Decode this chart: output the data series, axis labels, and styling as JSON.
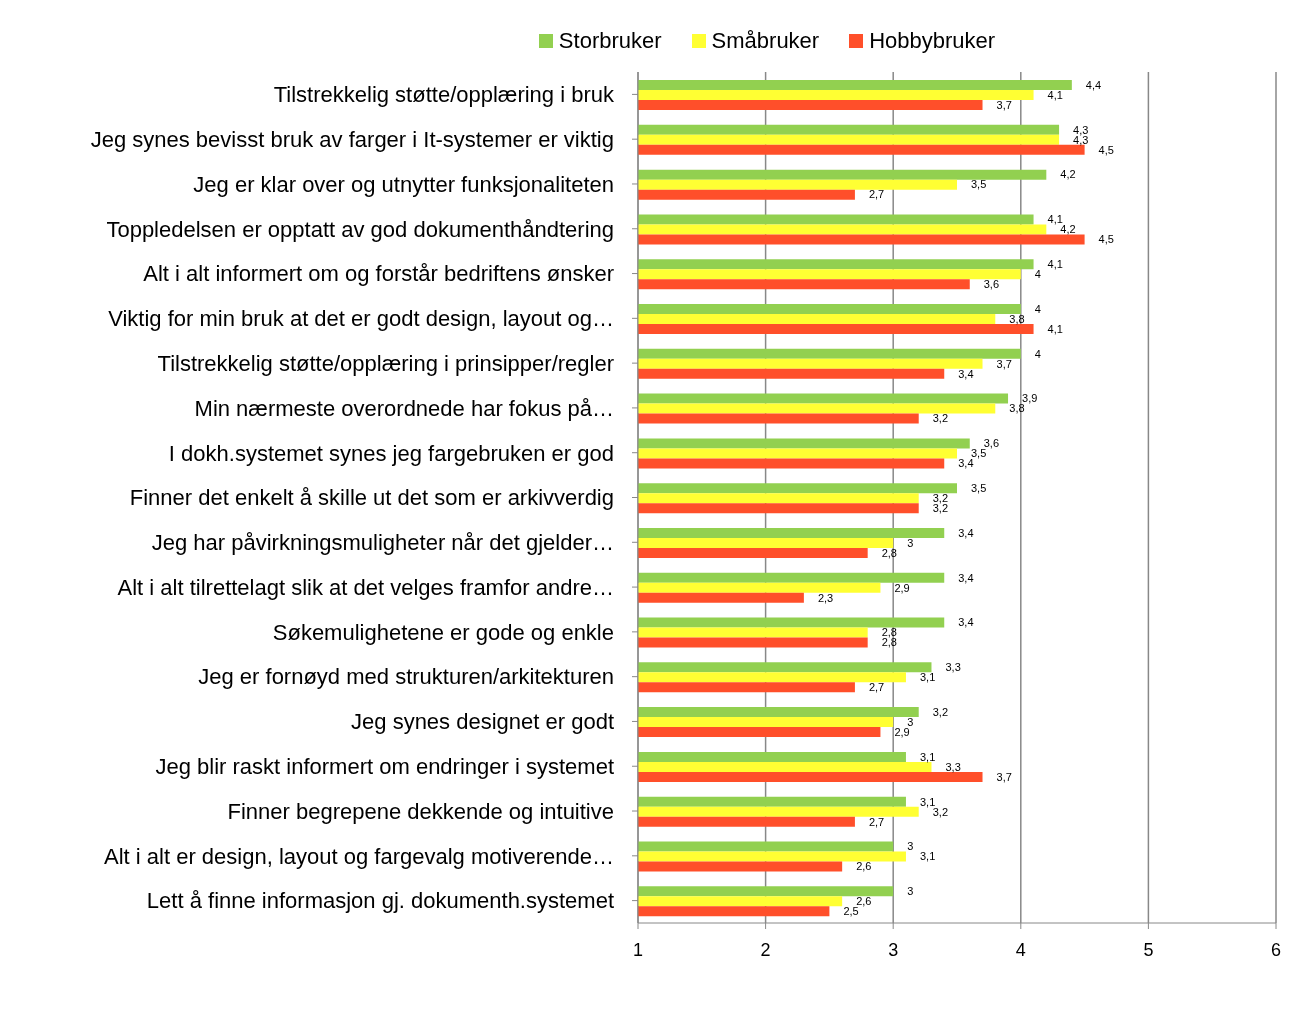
{
  "chart_data": {
    "type": "bar",
    "orientation": "horizontal",
    "categories": [
      "Tilstrekkelig støtte/opplæring i bruk",
      "Jeg synes bevisst bruk av farger i It-systemer er viktig",
      "Jeg er klar over og utnytter funksjonaliteten",
      "Toppledelsen er opptatt av god dokumenthåndtering",
      "Alt i alt informert om og forstår bedriftens ønsker",
      "Viktig for min bruk at det er godt design, layout og…",
      "Tilstrekkelig støtte/opplæring i prinsipper/regler",
      "Min nærmeste overordnede har fokus på…",
      "I dokh.systemet synes jeg fargebruken er god",
      "Finner det enkelt å skille ut det som er arkivverdig",
      "Jeg har påvirkningsmuligheter når det gjelder…",
      "Alt i alt tilrettelagt slik at det velges framfor andre…",
      "Søkemulighetene er gode og enkle",
      "Jeg er fornøyd med strukturen/arkitekturen",
      "Jeg synes designet er godt",
      "Jeg blir raskt informert om endringer i systemet",
      "Finner begrepene dekkende og intuitive",
      "Alt i alt er design, layout og fargevalg motiverende…",
      "Lett  å finne informasjon gj. dokumenth.systemet"
    ],
    "series": [
      {
        "name": "Storbruker",
        "color": "#92d050",
        "values": [
          4.4,
          4.3,
          4.2,
          4.1,
          4.1,
          4,
          4,
          3.9,
          3.6,
          3.5,
          3.4,
          3.4,
          3.4,
          3.3,
          3.2,
          3.1,
          3.1,
          3,
          3
        ],
        "value_labels": [
          "4,4",
          "4,3",
          "4,2",
          "4,1",
          "4,1",
          "4",
          "4",
          "3,9",
          "3,6",
          "3,5",
          "3,4",
          "3,4",
          "3,4",
          "3,3",
          "3,2",
          "3,1",
          "3,1",
          "3",
          "3"
        ]
      },
      {
        "name": "Småbruker",
        "color": "#ffff33",
        "values": [
          4.1,
          4.3,
          3.5,
          4.2,
          4,
          3.8,
          3.7,
          3.8,
          3.5,
          3.2,
          3,
          2.9,
          2.8,
          3.1,
          3,
          3.3,
          3.2,
          3.1,
          2.6
        ],
        "value_labels": [
          "4,1",
          "4,3",
          "3,5",
          "4,2",
          "4",
          "3,8",
          "3,7",
          "3,8",
          "3,5",
          "3,2",
          "3",
          "2,9",
          "2,8",
          "3,1",
          "3",
          "3,3",
          "3,2",
          "3,1",
          "2,6"
        ]
      },
      {
        "name": "Hobbybruker",
        "color": "#ff4f2a",
        "values": [
          3.7,
          4.5,
          2.7,
          4.5,
          3.6,
          4.1,
          3.4,
          3.2,
          3.4,
          3.2,
          2.8,
          2.3,
          2.8,
          2.7,
          2.9,
          3.7,
          2.7,
          2.6,
          2.5
        ],
        "value_labels": [
          "3,7",
          "4,5",
          "2,7",
          "4,5",
          "3,6",
          "4,1",
          "3,4",
          "3,2",
          "3,4",
          "3,2",
          "2,8",
          "2,3",
          "2,8",
          "2,7",
          "2,9",
          "3,7",
          "2,7",
          "2,6",
          "2,5"
        ]
      }
    ],
    "xlim": [
      1,
      6
    ],
    "xticks": [
      1,
      2,
      3,
      4,
      5,
      6
    ],
    "grid": "x",
    "legend": "top"
  }
}
